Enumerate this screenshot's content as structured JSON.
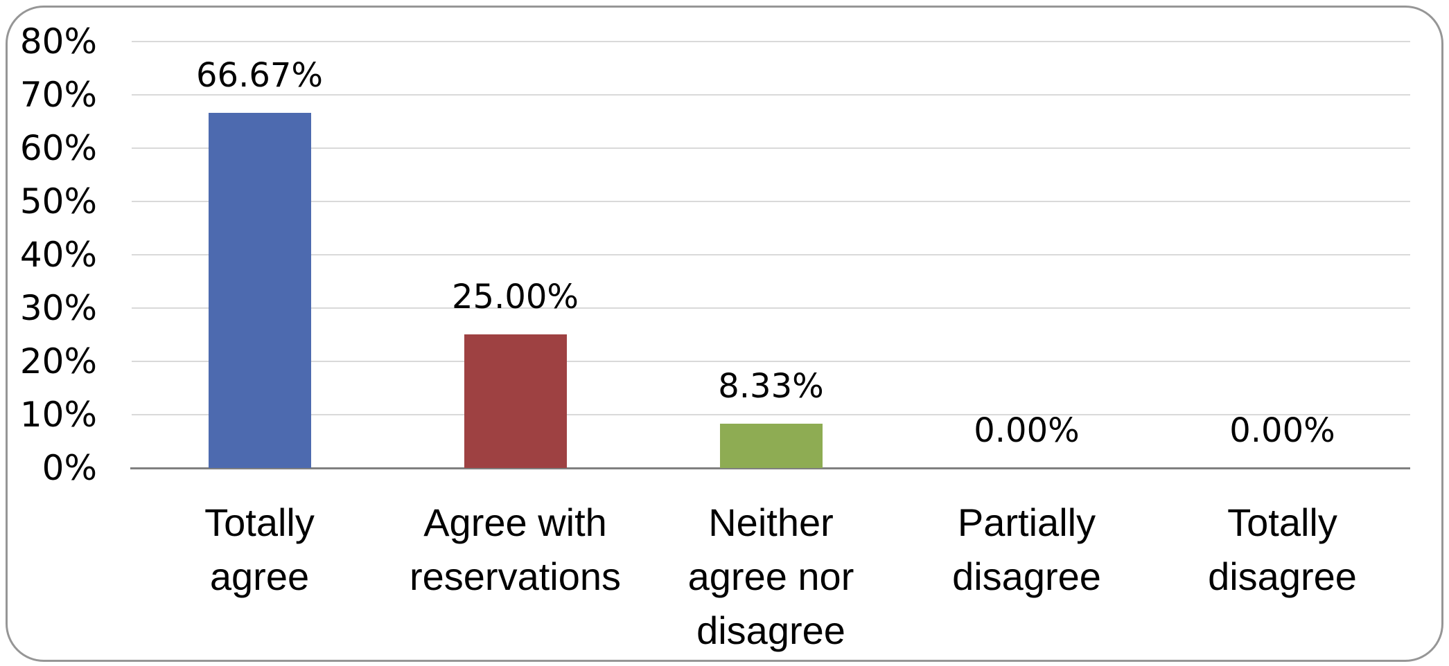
{
  "chart_data": {
    "type": "bar",
    "title": "",
    "categories": [
      "Totally agree",
      "Agree with reservations",
      "Neither agree nor disagree",
      "Partially disagree",
      "Totally disagree"
    ],
    "categories_lines": [
      [
        "Totally",
        "agree"
      ],
      [
        "Agree with",
        "reservations"
      ],
      [
        "Neither",
        "agree nor",
        "disagree"
      ],
      [
        "Partially",
        "disagree"
      ],
      [
        "Totally",
        "disagree"
      ]
    ],
    "values": [
      66.67,
      25.0,
      8.33,
      0.0,
      0.0
    ],
    "value_labels": [
      "66.67%",
      "25.00%",
      "8.33%",
      "0.00%",
      "0.00%"
    ],
    "bar_colors": [
      "#4D6AAF",
      "#9E4142",
      "#8EAC53",
      null,
      null
    ],
    "ylim": [
      0,
      80
    ],
    "ytick_step": 10,
    "ytick_labels": [
      "0%",
      "10%",
      "20%",
      "30%",
      "40%",
      "50%",
      "60%",
      "70%",
      "80%"
    ],
    "grid": true,
    "legend": "none",
    "colors": {
      "gridline": "#D9D9D9",
      "axis_line": "#7F7F7F",
      "frame_border": "#969696",
      "background": "#FFFFFF",
      "text": "#000000"
    }
  }
}
